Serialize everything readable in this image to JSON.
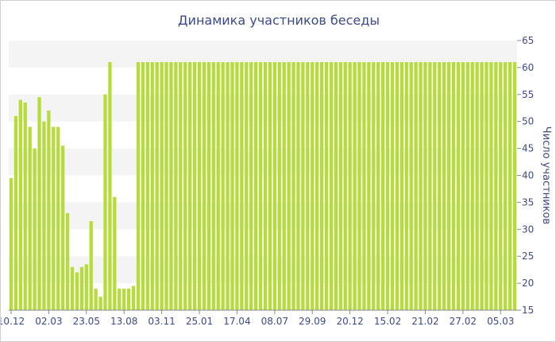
{
  "chart_data": {
    "type": "bar",
    "title": "Динамика участников беседы",
    "ylabel": "Число участников",
    "xlabel": "",
    "ylim": [
      15,
      65
    ],
    "y_ticks": [
      15,
      20,
      25,
      30,
      35,
      40,
      45,
      50,
      55,
      60,
      65
    ],
    "y_axis_side": "right",
    "grid": "alternating horizontal bands",
    "bar_color": "#b5dc3a",
    "band_color": "#f4f4f4",
    "x_tick_labels": [
      {
        "label": "10.12",
        "index": 0
      },
      {
        "label": "02.03",
        "index": 8
      },
      {
        "label": "23.05",
        "index": 16
      },
      {
        "label": "13.08",
        "index": 24
      },
      {
        "label": "03.11",
        "index": 32
      },
      {
        "label": "25.01",
        "index": 40
      },
      {
        "label": "17.04",
        "index": 48
      },
      {
        "label": "08.07",
        "index": 56
      },
      {
        "label": "29.09",
        "index": 64
      },
      {
        "label": "20.12",
        "index": 72
      },
      {
        "label": "15.02",
        "index": 80
      },
      {
        "label": "21.02",
        "index": 88
      },
      {
        "label": "27.02",
        "index": 96
      },
      {
        "label": "05.03",
        "index": 104
      }
    ],
    "values": [
      39.5,
      51,
      54,
      53.5,
      49,
      45,
      54.5,
      50,
      52,
      49,
      49,
      45.5,
      33,
      23,
      22,
      23,
      23.5,
      31.5,
      19,
      17.5,
      55,
      61,
      36,
      19,
      19,
      19,
      19.5,
      61,
      61,
      61,
      61,
      61,
      61,
      61,
      61,
      61,
      61,
      61,
      61,
      61,
      61,
      61,
      61,
      61,
      61,
      61,
      61,
      61,
      61,
      61,
      61,
      61,
      61,
      61,
      61,
      61,
      61,
      61,
      61,
      61,
      61,
      61,
      61,
      61,
      61,
      61,
      61,
      61,
      61,
      61,
      61,
      61,
      61,
      61,
      61,
      61,
      61,
      61,
      61,
      61,
      61,
      61,
      61,
      61,
      61,
      61,
      61,
      61,
      61,
      61,
      61,
      61,
      61,
      61,
      61,
      61,
      61,
      61,
      61,
      61,
      61,
      61,
      61,
      61,
      61,
      61,
      61,
      61
    ]
  }
}
